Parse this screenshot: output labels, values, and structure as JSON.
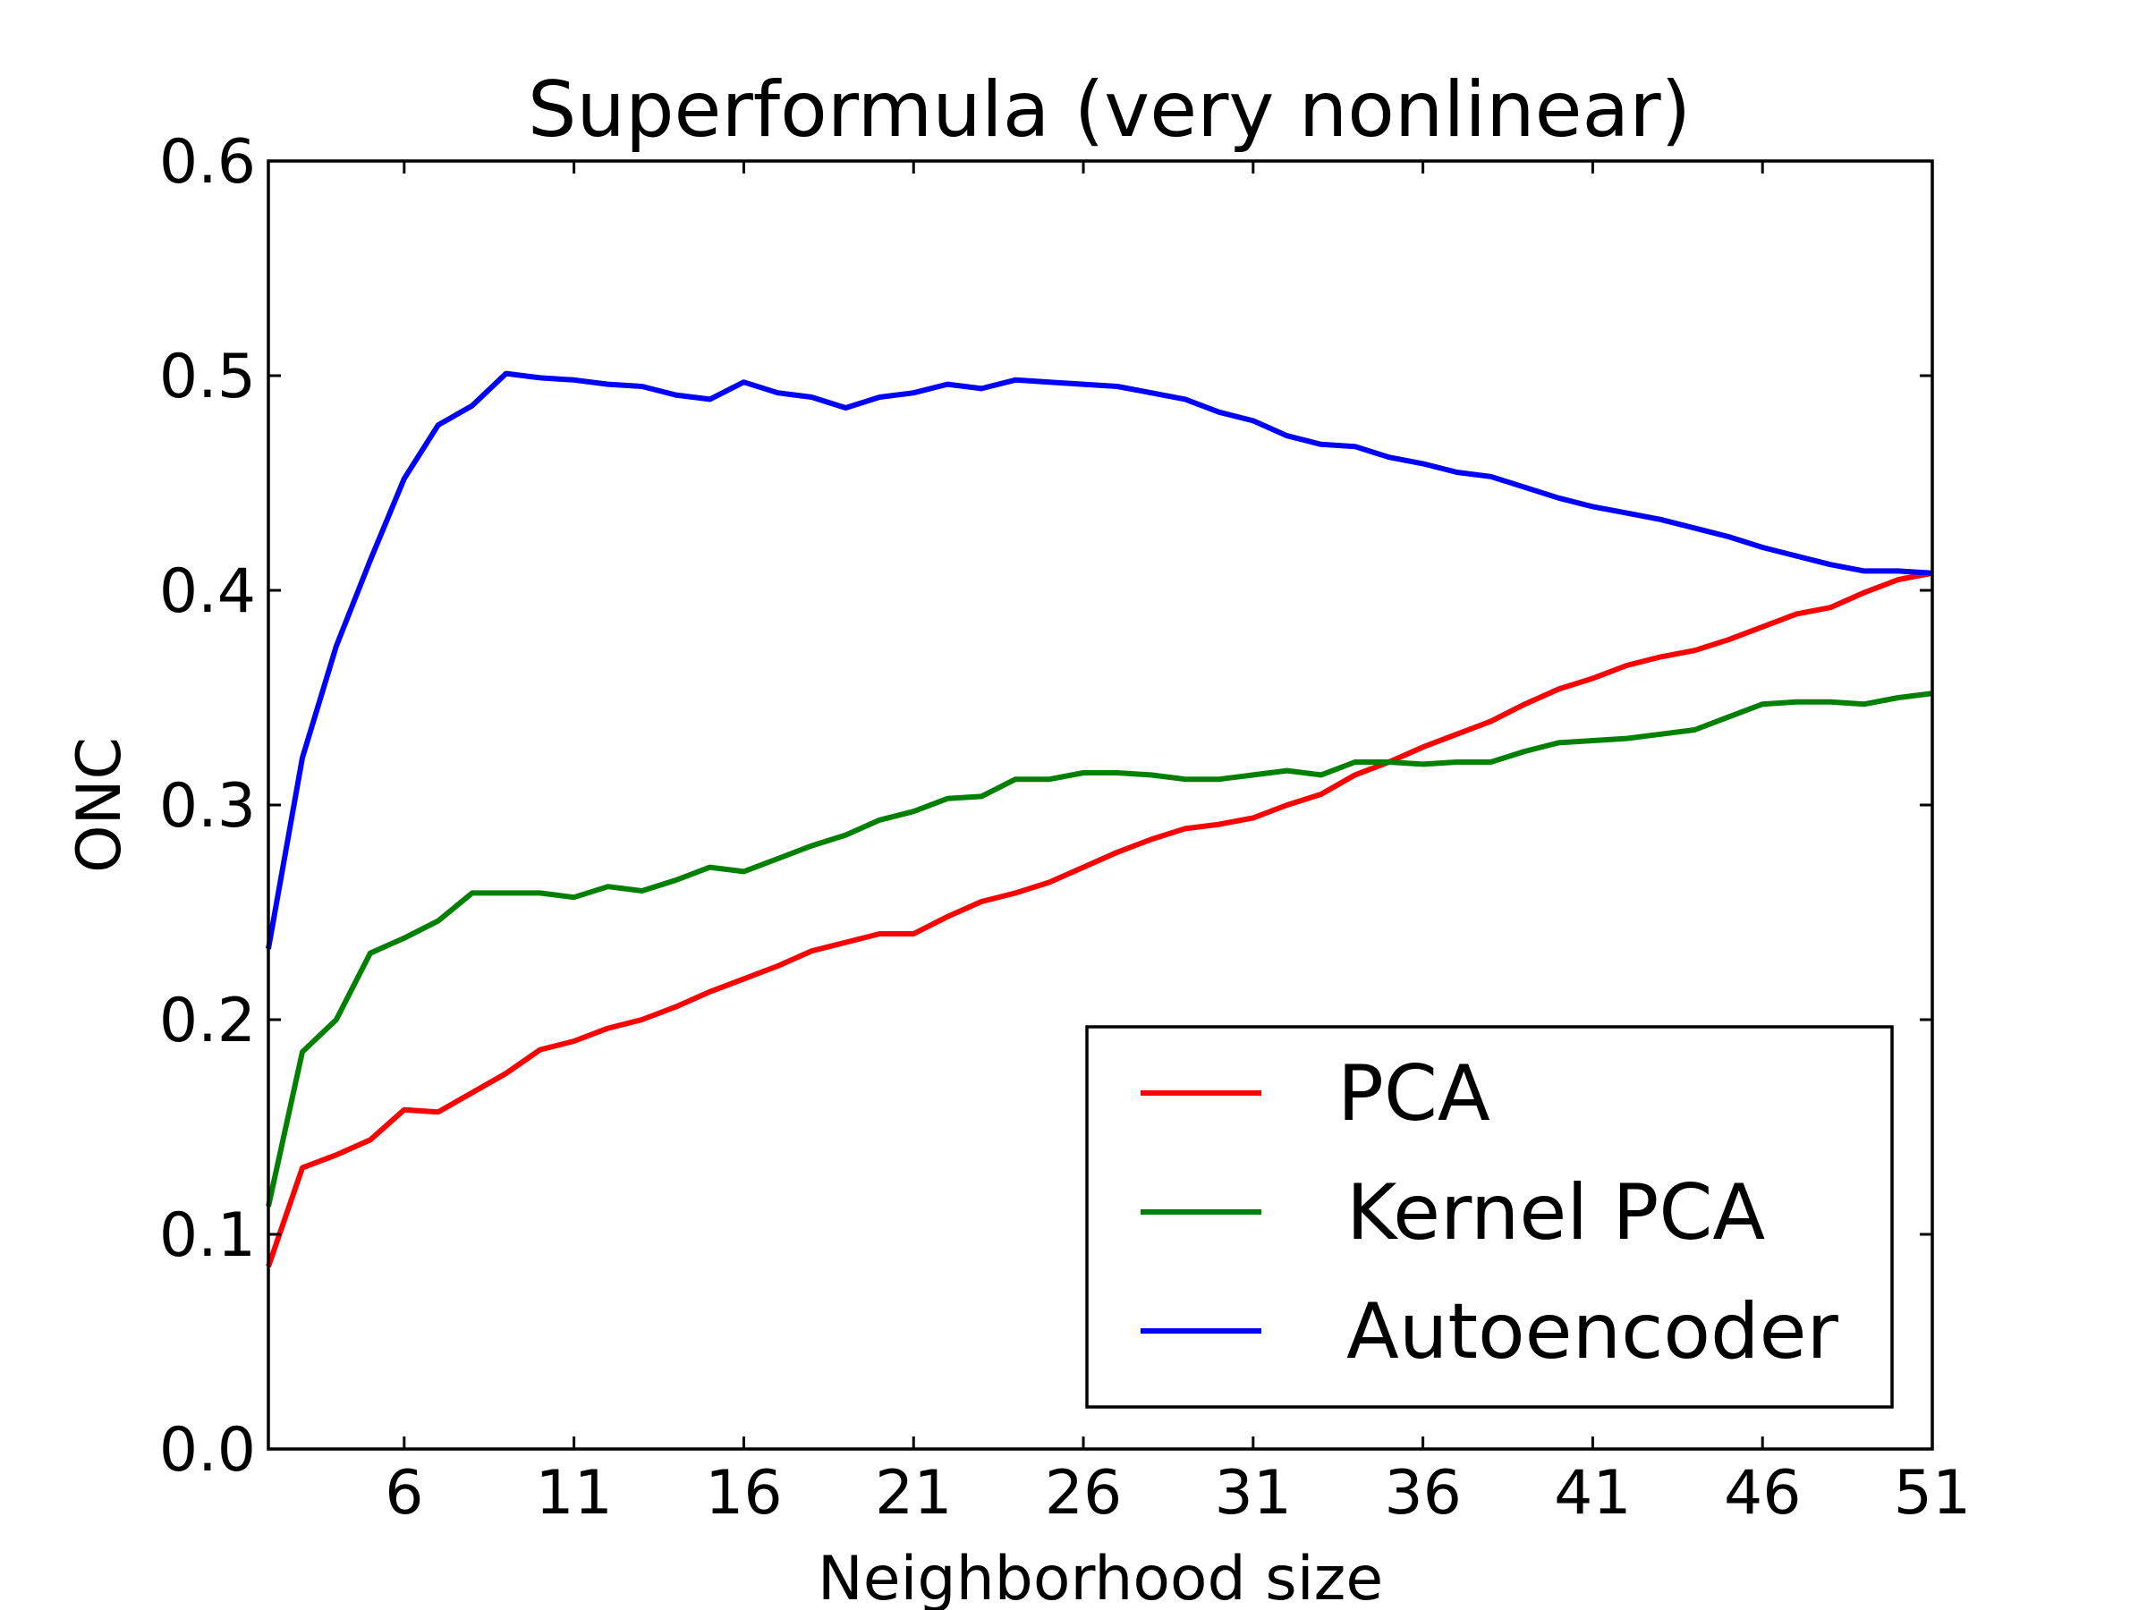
{
  "chart_data": {
    "type": "line",
    "title": "Superformula (very nonlinear)",
    "xlabel": "Neighborhood size",
    "ylabel": "ONC",
    "xlim": [
      2,
      51
    ],
    "ylim": [
      0.0,
      0.6
    ],
    "xticks": [
      6,
      11,
      16,
      21,
      26,
      31,
      36,
      41,
      46,
      51
    ],
    "xtick_labels": [
      "6",
      "11",
      "16",
      "21",
      "26",
      "31",
      "36",
      "41",
      "46",
      "51"
    ],
    "yticks": [
      0.0,
      0.1,
      0.2,
      0.3,
      0.4,
      0.5,
      0.6
    ],
    "ytick_labels": [
      "0.0",
      "0.1",
      "0.2",
      "0.3",
      "0.4",
      "0.5",
      "0.6"
    ],
    "grid": false,
    "legend_position": "lower-right",
    "x": [
      2,
      3,
      4,
      5,
      6,
      7,
      8,
      9,
      10,
      11,
      12,
      13,
      14,
      15,
      16,
      17,
      18,
      19,
      20,
      21,
      22,
      23,
      24,
      25,
      26,
      27,
      28,
      29,
      30,
      31,
      32,
      33,
      34,
      35,
      36,
      37,
      38,
      39,
      40,
      41,
      42,
      43,
      44,
      45,
      46,
      47,
      48,
      49,
      50,
      51
    ],
    "series": [
      {
        "name": "PCA",
        "color": "#ff0000",
        "values": [
          0.085,
          0.131,
          0.137,
          0.144,
          0.158,
          0.157,
          0.166,
          0.175,
          0.186,
          0.19,
          0.196,
          0.2,
          0.206,
          0.213,
          0.219,
          0.225,
          0.232,
          0.236,
          0.24,
          0.24,
          0.248,
          0.255,
          0.259,
          0.264,
          0.271,
          0.278,
          0.284,
          0.289,
          0.291,
          0.294,
          0.3,
          0.305,
          0.314,
          0.32,
          0.327,
          0.333,
          0.339,
          0.347,
          0.354,
          0.359,
          0.365,
          0.369,
          0.372,
          0.377,
          0.383,
          0.389,
          0.392,
          0.399,
          0.405,
          0.408
        ]
      },
      {
        "name": "Kernel PCA",
        "color": "#008000",
        "values": [
          0.113,
          0.185,
          0.2,
          0.231,
          0.238,
          0.246,
          0.259,
          0.259,
          0.259,
          0.257,
          0.262,
          0.26,
          0.265,
          0.271,
          0.269,
          0.275,
          0.281,
          0.286,
          0.293,
          0.297,
          0.303,
          0.304,
          0.312,
          0.312,
          0.315,
          0.315,
          0.314,
          0.312,
          0.312,
          0.314,
          0.316,
          0.314,
          0.32,
          0.32,
          0.319,
          0.32,
          0.32,
          0.325,
          0.329,
          0.33,
          0.331,
          0.333,
          0.335,
          0.341,
          0.347,
          0.348,
          0.348,
          0.347,
          0.35,
          0.352
        ]
      },
      {
        "name": "Autoencoder",
        "color": "#0000ff",
        "values": [
          0.233,
          0.322,
          0.374,
          0.414,
          0.452,
          0.477,
          0.486,
          0.501,
          0.499,
          0.498,
          0.496,
          0.495,
          0.491,
          0.489,
          0.497,
          0.492,
          0.49,
          0.485,
          0.49,
          0.492,
          0.496,
          0.494,
          0.498,
          0.497,
          0.496,
          0.495,
          0.492,
          0.489,
          0.483,
          0.479,
          0.472,
          0.468,
          0.467,
          0.462,
          0.459,
          0.455,
          0.453,
          0.448,
          0.443,
          0.439,
          0.436,
          0.433,
          0.429,
          0.425,
          0.42,
          0.416,
          0.412,
          0.409,
          0.409,
          0.408
        ]
      }
    ]
  }
}
